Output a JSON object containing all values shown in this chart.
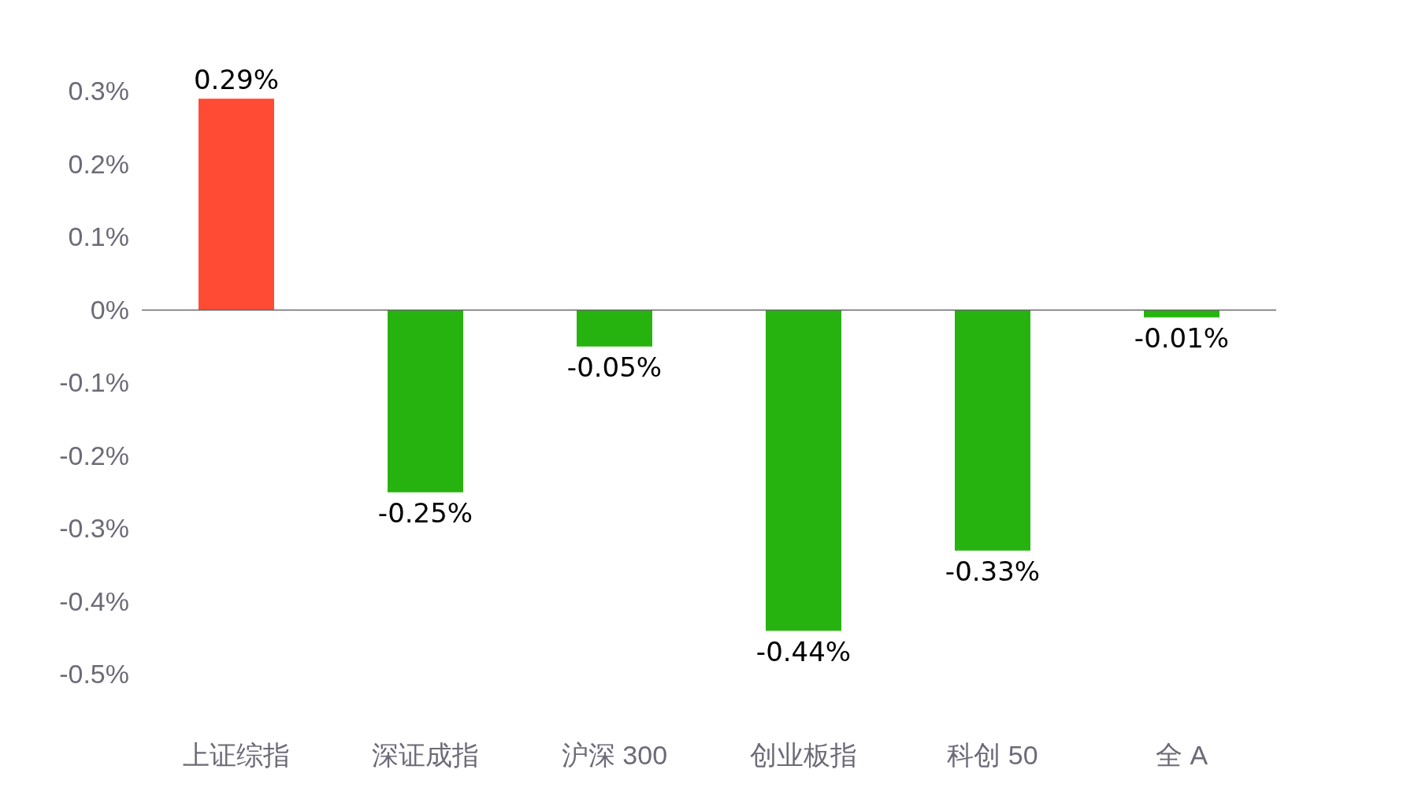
{
  "chart_data": {
    "type": "bar",
    "categories": [
      "上证综指",
      "深证成指",
      "沪深 300",
      "创业板指",
      "科创 50",
      "全 A"
    ],
    "values": [
      0.29,
      -0.25,
      -0.05,
      -0.44,
      -0.33,
      -0.01
    ],
    "colors": [
      "#ff4b33",
      "#27b30f",
      "#27b30f",
      "#27b30f",
      "#27b30f",
      "#27b30f"
    ],
    "value_labels": [
      "0.29%",
      "-0.25%",
      "-0.05%",
      "-0.44%",
      "-0.33%",
      "-0.01%"
    ],
    "ylim": [
      -0.5,
      0.3
    ],
    "yticks": [
      {
        "value": 0.3,
        "label": "0.3%"
      },
      {
        "value": 0.2,
        "label": "0.2%"
      },
      {
        "value": 0.1,
        "label": "0.1%"
      },
      {
        "value": 0,
        "label": "0%"
      },
      {
        "value": -0.1,
        "label": "-0.1%"
      },
      {
        "value": -0.2,
        "label": "-0.2%"
      },
      {
        "value": -0.3,
        "label": "-0.3%"
      },
      {
        "value": -0.4,
        "label": "-0.4%"
      },
      {
        "value": -0.5,
        "label": "-0.5%"
      }
    ]
  }
}
